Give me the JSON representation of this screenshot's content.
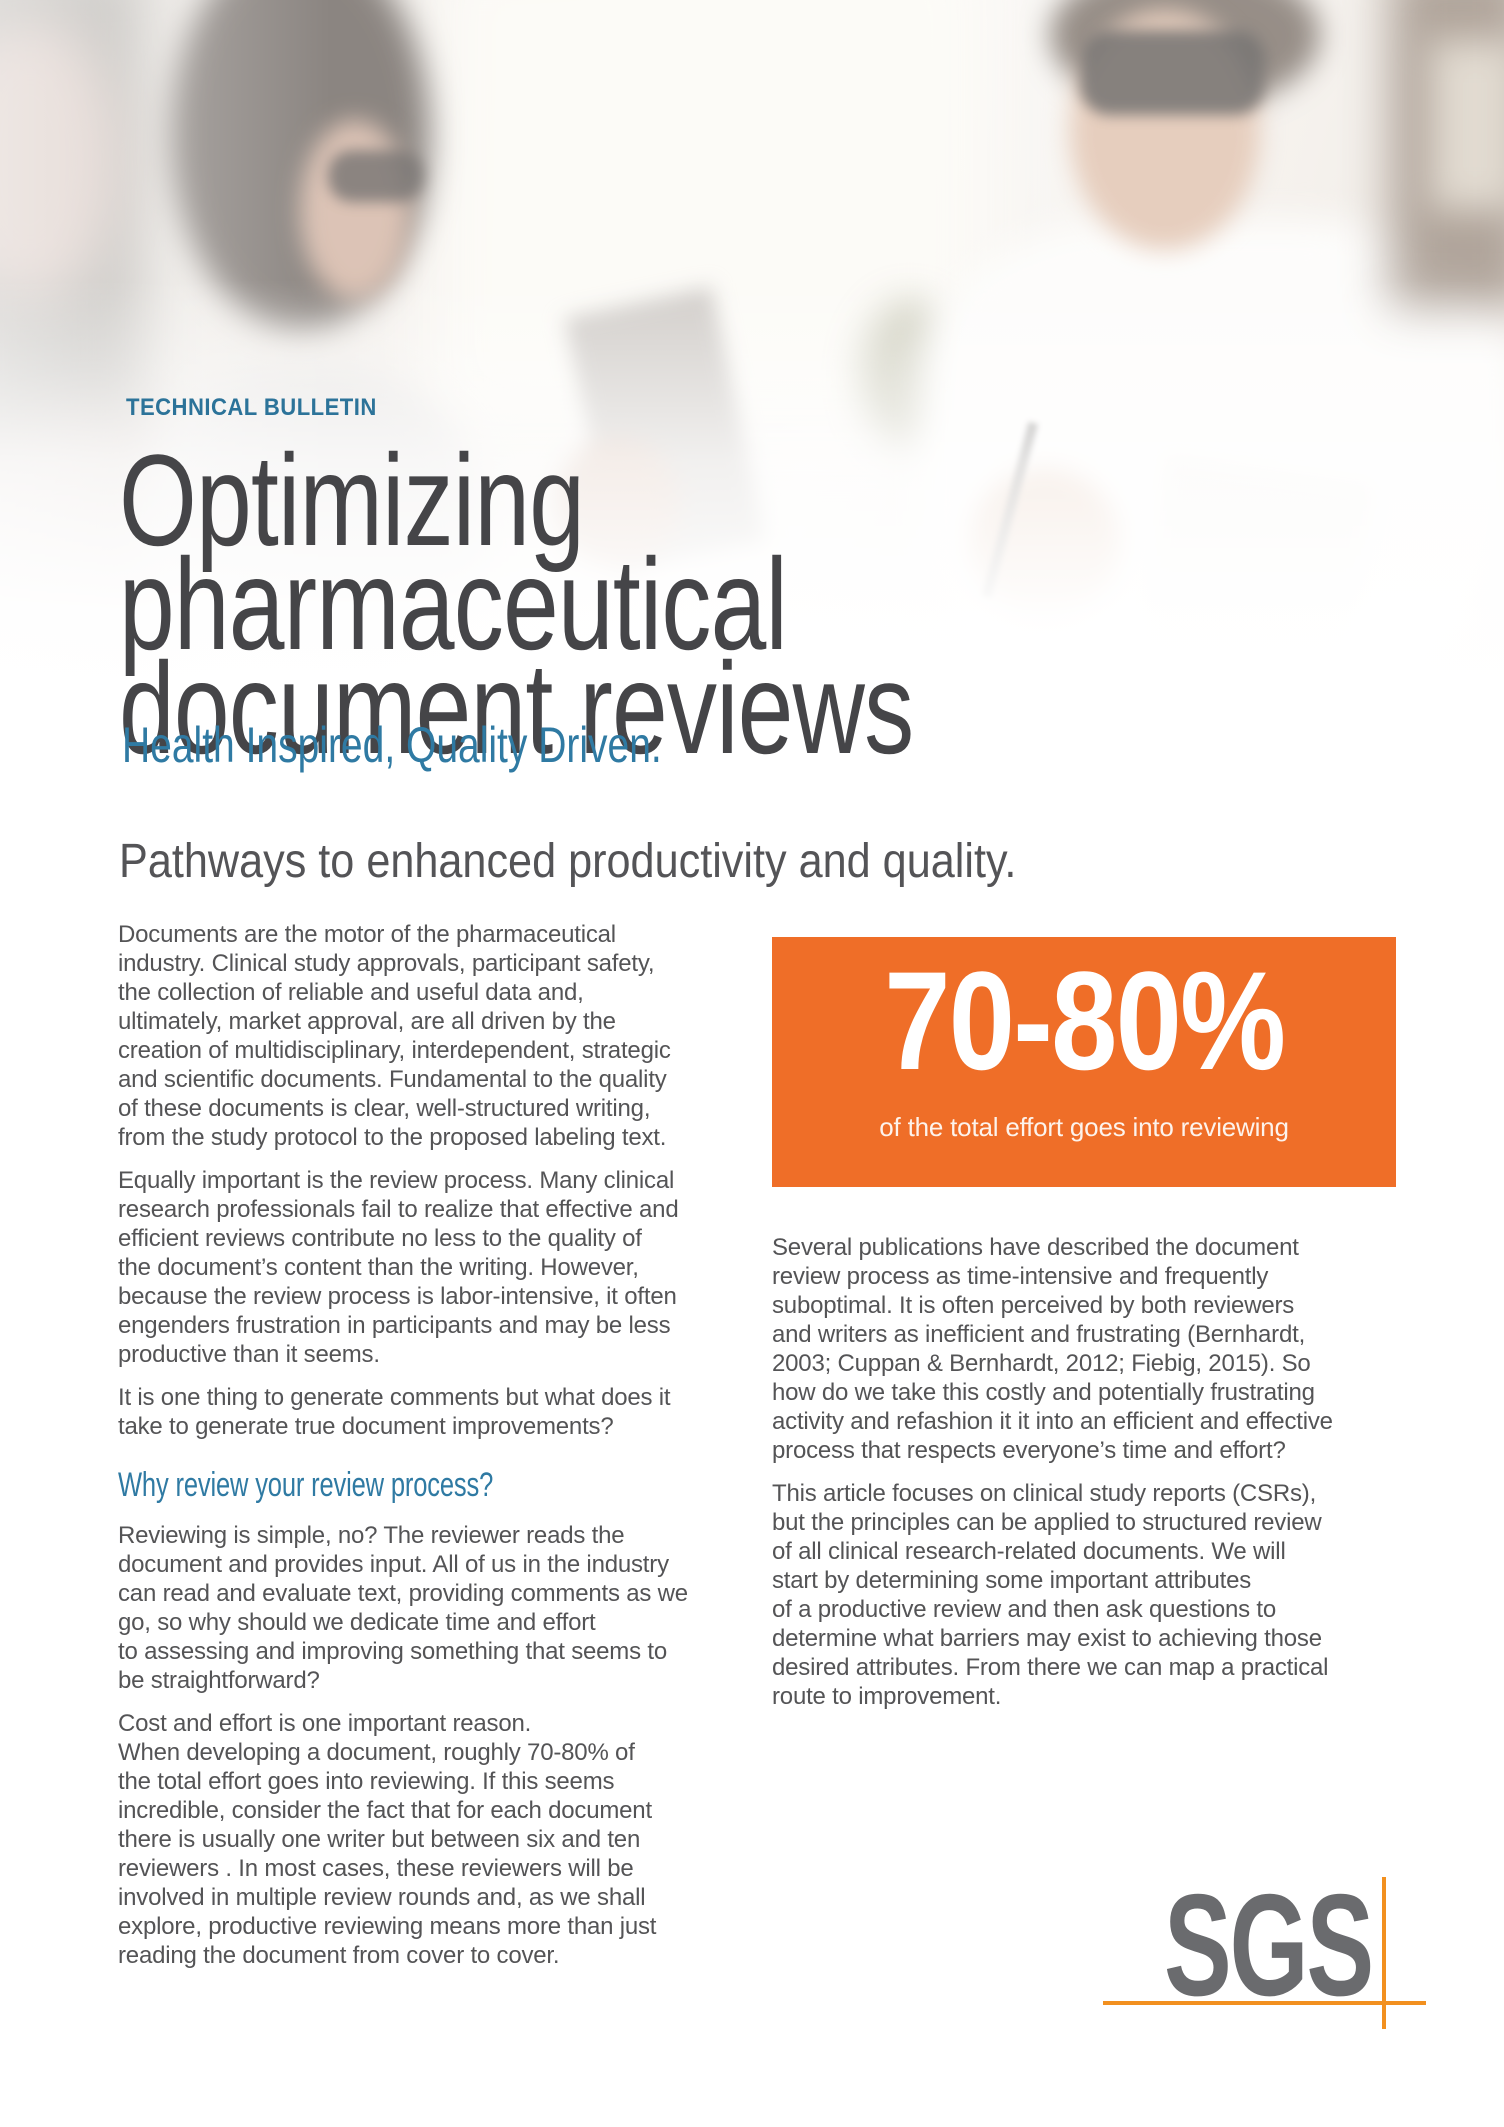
{
  "header": {
    "kicker": "TECHNICAL BULLETIN",
    "title": "Optimizing pharmaceutical\ndocument reviews",
    "tagline": "Health Inspired, Quality Driven.",
    "section_heading": "Pathways to enhanced productivity and quality."
  },
  "left_column": {
    "paragraphs": [
      "Documents are the motor of the pharmaceutical\nindustry. Clinical study approvals, participant safety,\nthe collection of reliable and useful data and,\nultimately, market approval, are all driven by the\ncreation of multidisciplinary, interdependent, strategic\nand scientific documents. Fundamental to the quality\nof these documents is clear, well-structured writing,\nfrom the study protocol to the proposed labeling text.",
      "Equally important is the review process. Many clinical\nresearch professionals fail to realize that effective and\nefficient reviews contribute no less to the quality of\nthe document’s content than the writing. However,\nbecause the review process is labor-intensive, it often\nengenders frustration in participants and may be less\nproductive than it seems.",
      "It is one thing to generate comments but what does it\ntake to generate true document improvements?"
    ],
    "subheading": "Why review your review process?",
    "paragraphs_after": [
      "Reviewing is simple, no? The reviewer reads the\ndocument and provides input. All of us in the industry\ncan read and evaluate text, providing comments as we\ngo, so why should we dedicate time and effort\nto assessing and improving something that seems to\nbe straightforward?",
      "Cost and effort is one important reason.\nWhen developing a document, roughly 70-80% of\nthe total effort goes into reviewing.  If this seems\nincredible, consider the fact that for each document\nthere is usually one writer but between six and ten\nreviewers . In most cases, these reviewers will be\ninvolved in multiple review rounds and, as we shall\nexplore, productive reviewing means more than just\nreading the document from cover to cover."
    ]
  },
  "callout": {
    "stat": "70-80%",
    "caption": "of the total effort goes into reviewing"
  },
  "right_column": {
    "paragraphs": [
      "Several publications have described the document\nreview process as time-intensive and frequently\nsuboptimal. It is often perceived by both reviewers\nand writers as inefficient and frustrating (Bernhardt,\n2003; Cuppan & Bernhardt, 2012; Fiebig, 2015). So\nhow do we take this costly and potentially frustrating\nactivity and refashion it it into an efficient and effective\nprocess that respects everyone’s time and effort?",
      "This article focuses on clinical study reports (CSRs),\nbut the principles can be applied to structured review\nof all clinical research-related documents. We will\nstart by determining some important attributes\nof a productive review and then ask questions to\ndetermine what barriers may exist to achieving those\ndesired attributes. From there we can map a practical\nroute to improvement."
    ]
  },
  "logo": {
    "text": "SGS"
  },
  "colors": {
    "kicker_blue": "#2c7399",
    "heading_blue": "#2f7aa3",
    "body_gray": "#545456",
    "title_gray": "#454548",
    "callout_orange": "#ef6e28",
    "logo_gray": "#6a6b6e",
    "logo_orange": "#f2901f"
  }
}
